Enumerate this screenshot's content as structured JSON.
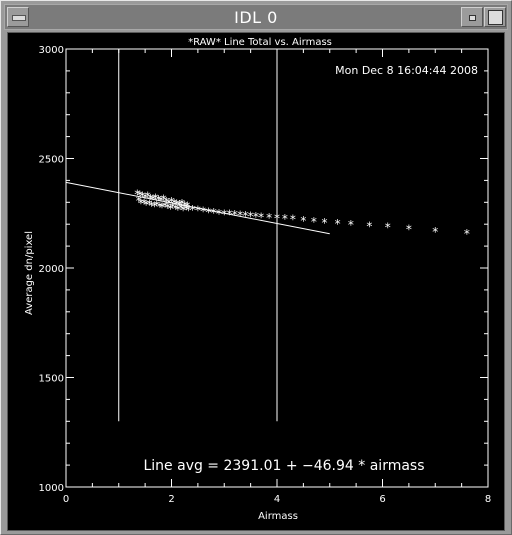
{
  "window": {
    "title": "IDL 0",
    "menu_icon": "window-menu-icon",
    "minimize_icon": "minimize-icon",
    "maximize_icon": "maximize-icon"
  },
  "plot": {
    "timestamp": "Mon Dec  8 16:04:44 2008",
    "fit_text": "Line avg = 2391.01 + −46.94 * airmass",
    "colors": {
      "background": "#000000",
      "foreground": "#ffffff"
    }
  },
  "chart_data": {
    "type": "scatter",
    "title": "*RAW* Line Total vs. Airmass",
    "xlabel": "Airmass",
    "ylabel": "Average dn/pixel",
    "xlim": [
      0,
      8
    ],
    "ylim": [
      1000,
      3000
    ],
    "xticks": [
      "0",
      "2",
      "4",
      "6",
      "8"
    ],
    "yticks": [
      "1000",
      "1500",
      "2000",
      "2500",
      "3000"
    ],
    "grid": false,
    "vertical_lines_x": [
      1,
      4
    ],
    "vertical_lines_y_range": [
      1300,
      3000
    ],
    "fit_line": {
      "intercept": 2391.01,
      "slope": -46.94,
      "x_range": [
        0,
        5
      ]
    },
    "series": [
      {
        "marker": "*",
        "x": [
          1.35,
          1.4,
          1.45,
          1.5,
          1.55,
          1.6,
          1.65,
          1.7,
          1.75,
          1.8,
          1.85,
          1.9,
          1.95,
          2.0,
          2.05,
          2.1,
          2.15,
          2.2,
          2.25,
          2.3,
          1.38,
          1.42,
          1.48,
          1.52,
          1.58,
          1.62,
          1.68,
          1.72,
          1.78,
          1.82,
          1.88,
          1.92,
          1.98,
          2.02,
          2.08,
          2.12,
          2.18,
          2.22,
          2.28,
          2.32,
          2.4,
          2.5,
          2.6,
          2.7,
          2.8,
          2.9,
          3.0,
          3.1,
          3.2,
          3.3,
          3.4,
          3.5,
          3.6,
          3.7,
          3.85,
          4.0,
          4.15,
          4.3,
          4.5,
          4.7,
          4.9,
          5.15,
          5.4,
          5.75,
          6.1,
          6.5,
          7.0,
          7.6
        ],
        "y": [
          2340,
          2335,
          2330,
          2325,
          2330,
          2320,
          2318,
          2322,
          2315,
          2310,
          2318,
          2305,
          2300,
          2305,
          2298,
          2295,
          2292,
          2296,
          2288,
          2285,
          2310,
          2300,
          2298,
          2292,
          2295,
          2288,
          2285,
          2290,
          2283,
          2280,
          2286,
          2278,
          2275,
          2280,
          2273,
          2270,
          2276,
          2268,
          2272,
          2266,
          2270,
          2266,
          2262,
          2258,
          2255,
          2252,
          2250,
          2248,
          2246,
          2244,
          2242,
          2240,
          2238,
          2236,
          2233,
          2230,
          2228,
          2225,
          2220,
          2215,
          2210,
          2205,
          2200,
          2195,
          2190,
          2180,
          2170,
          2160
        ]
      }
    ]
  }
}
